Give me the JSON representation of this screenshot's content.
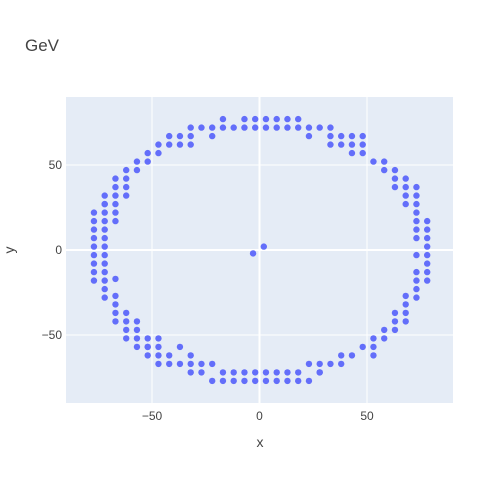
{
  "chart_data": {
    "type": "scatter",
    "title": "GeV",
    "xlabel": "x",
    "ylabel": "y",
    "xlim": [
      -90,
      90
    ],
    "ylim": [
      -90,
      90
    ],
    "xticks": [
      -50,
      0,
      50
    ],
    "yticks": [
      -50,
      0,
      50
    ],
    "xtick_labels": [
      "−50",
      "0",
      "50"
    ],
    "ytick_labels": [
      "−50",
      "0",
      "50"
    ],
    "grid": true,
    "colors": {
      "plot_bg": "#E5ECF6",
      "grid": "#FFFFFF",
      "marker": "#636EFA"
    },
    "x": [
      -77,
      -77,
      -77,
      -77,
      -77,
      -77,
      -77,
      -77,
      -77,
      -72,
      -72,
      -72,
      -72,
      -72,
      -72,
      -72,
      -72,
      -72,
      -72,
      -72,
      -72,
      -72,
      -72,
      -67,
      -67,
      -67,
      -67,
      -67,
      -67,
      -67,
      -67,
      -67,
      -67,
      -67,
      -62,
      -62,
      -62,
      -62,
      -62,
      -62,
      -62,
      -62,
      -57,
      -57,
      -57,
      -57,
      -57,
      -57,
      -52,
      -52,
      -52,
      -52,
      -52,
      -52,
      -47,
      -47,
      -47,
      -47,
      -47,
      -47,
      -42,
      -42,
      -42,
      -42,
      -37,
      -37,
      -37,
      -37,
      -32,
      -32,
      -32,
      -32,
      -32,
      -32,
      -27,
      -27,
      -27,
      -22,
      -22,
      -22,
      -22,
      -17,
      -17,
      -17,
      -17,
      -12,
      -12,
      -12,
      -7,
      -7,
      -7,
      -7,
      -2,
      -2,
      -2,
      -2,
      3,
      3,
      3,
      3,
      8,
      8,
      8,
      8,
      13,
      13,
      13,
      13,
      18,
      18,
      18,
      18,
      23,
      23,
      23,
      23,
      28,
      28,
      28,
      28,
      33,
      33,
      33,
      33,
      38,
      38,
      38,
      38,
      43,
      43,
      43,
      43,
      48,
      48,
      48,
      48,
      53,
      53,
      53,
      53,
      58,
      58,
      58,
      58,
      63,
      63,
      63,
      63,
      63,
      63,
      68,
      68,
      68,
      68,
      68,
      68,
      68,
      68,
      73,
      73,
      73,
      73,
      73,
      73,
      73,
      73,
      73,
      73,
      73,
      73,
      78,
      78,
      78,
      78,
      78,
      78,
      78,
      78,
      -3,
      2
    ],
    "y": [
      22,
      17,
      12,
      7,
      2,
      -3,
      -8,
      -13,
      -18,
      32,
      27,
      22,
      17,
      12,
      7,
      2,
      -3,
      -8,
      -13,
      -18,
      -23,
      -28,
      27,
      42,
      37,
      32,
      27,
      22,
      -17,
      -27,
      -32,
      -37,
      -42,
      17,
      47,
      42,
      37,
      32,
      -37,
      -42,
      -47,
      -52,
      52,
      47,
      -42,
      -47,
      -52,
      -57,
      57,
      52,
      -52,
      -57,
      -62,
      -57,
      62,
      57,
      -52,
      -57,
      -62,
      -67,
      67,
      62,
      -62,
      -67,
      67,
      62,
      -57,
      -67,
      72,
      67,
      62,
      -62,
      -67,
      -72,
      72,
      -67,
      -72,
      72,
      67,
      -67,
      -77,
      77,
      72,
      -72,
      -77,
      72,
      -72,
      -77,
      77,
      72,
      -72,
      -77,
      77,
      72,
      -72,
      -77,
      77,
      72,
      -72,
      -77,
      77,
      72,
      -72,
      -77,
      77,
      72,
      -72,
      -77,
      77,
      72,
      -72,
      -77,
      72,
      67,
      -67,
      -77,
      72,
      -67,
      -72,
      -72,
      72,
      67,
      62,
      -67,
      67,
      62,
      -62,
      -67,
      67,
      62,
      57,
      -62,
      67,
      62,
      57,
      -57,
      52,
      -52,
      -57,
      -62,
      52,
      47,
      -47,
      -52,
      47,
      42,
      37,
      -37,
      -42,
      -47,
      42,
      37,
      32,
      27,
      -27,
      -32,
      -37,
      -42,
      37,
      32,
      27,
      22,
      17,
      12,
      7,
      -3,
      -13,
      -18,
      -23,
      -28,
      17,
      12,
      7,
      2,
      -3,
      -8,
      -13,
      -18,
      -2,
      2
    ]
  }
}
